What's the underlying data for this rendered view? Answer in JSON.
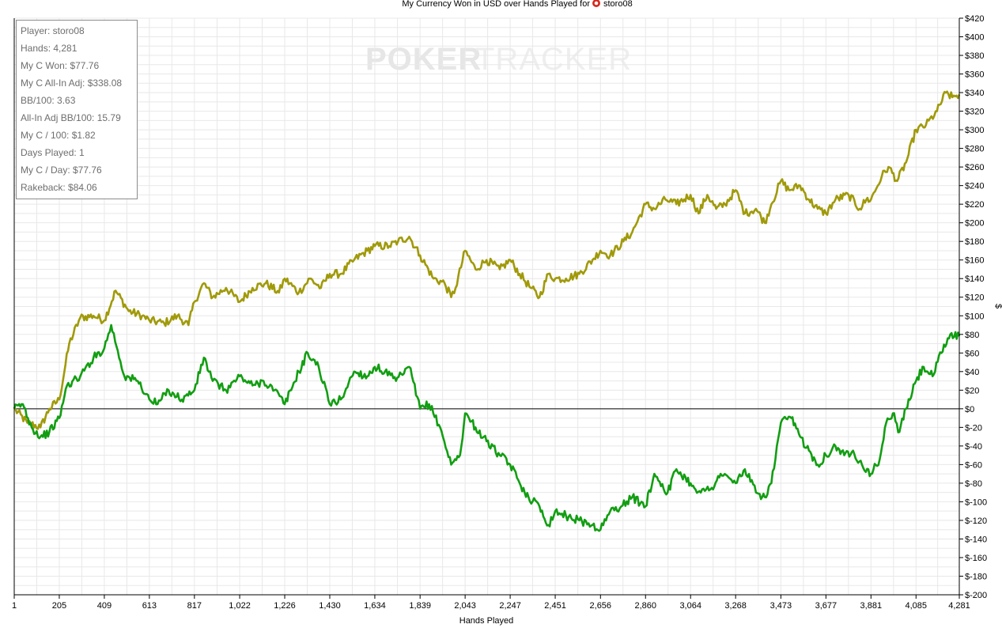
{
  "chart_data": {
    "type": "line",
    "title": "My Currency Won in USD over Hands Played for",
    "player": "storo08",
    "xlabel": "Hands Played",
    "ylabel": "$",
    "xlim": [
      1,
      4281
    ],
    "ylim": [
      -200,
      420
    ],
    "x_ticks": [
      1,
      205,
      409,
      613,
      817,
      1022,
      1226,
      1430,
      1634,
      1839,
      2043,
      2247,
      2451,
      2656,
      2860,
      3064,
      3268,
      3473,
      3677,
      3881,
      4085,
      4281
    ],
    "x_tick_labels": [
      "1",
      "205",
      "409",
      "613",
      "817",
      "1,022",
      "1,226",
      "1,430",
      "1,634",
      "1,839",
      "2,043",
      "2,247",
      "2,451",
      "2,656",
      "2,860",
      "3,064",
      "3,268",
      "3,473",
      "3,677",
      "3,881",
      "4,085",
      "4,281"
    ],
    "y_ticks": [
      420,
      400,
      380,
      360,
      340,
      320,
      300,
      280,
      260,
      240,
      220,
      200,
      180,
      160,
      140,
      120,
      100,
      80,
      60,
      40,
      20,
      0,
      -20,
      -40,
      -60,
      -80,
      -100,
      -120,
      -140,
      -160,
      -180,
      -200
    ],
    "y_tick_labels": [
      "$420",
      "$400",
      "$380",
      "$360",
      "$340",
      "$320",
      "$300",
      "$280",
      "$260",
      "$240",
      "$220",
      "$200",
      "$180",
      "$160",
      "$140",
      "$120",
      "$100",
      "$80",
      "$60",
      "$40",
      "$20",
      "$0",
      "$-20",
      "$-40",
      "$-60",
      "$-80",
      "$-100",
      "$-120",
      "$-140",
      "$-160",
      "$-180",
      "$-200"
    ],
    "grid": true,
    "series": [
      {
        "color": "#a09a0a",
        "x": [
          1,
          60,
          120,
          160,
          205,
          250,
          300,
          360,
          409,
          460,
          520,
          580,
          613,
          680,
          740,
          790,
          817,
          860,
          900,
          960,
          1022,
          1080,
          1140,
          1200,
          1226,
          1290,
          1340,
          1390,
          1430,
          1480,
          1540,
          1600,
          1634,
          1700,
          1739,
          1790,
          1839,
          1900,
          1950,
          1980,
          2000,
          2043,
          2090,
          2140,
          2200,
          2247,
          2290,
          2340,
          2380,
          2420,
          2451,
          2500,
          2560,
          2620,
          2656,
          2700,
          2760,
          2800,
          2860,
          2900,
          2950,
          3000,
          3064,
          3100,
          3140,
          3180,
          3220,
          3268,
          3310,
          3360,
          3400,
          3430,
          3473,
          3510,
          3560,
          3600,
          3640,
          3677,
          3720,
          3780,
          3830,
          3860,
          3881,
          3930,
          3960,
          4000,
          4040,
          4085,
          4130,
          4180,
          4220,
          4250,
          4281
        ],
        "y": [
          0,
          -15,
          -20,
          0,
          10,
          70,
          98,
          100,
          95,
          127,
          105,
          100,
          95,
          92,
          100,
          90,
          115,
          135,
          120,
          130,
          115,
          130,
          135,
          125,
          140,
          125,
          140,
          130,
          145,
          145,
          160,
          170,
          175,
          175,
          180,
          185,
          165,
          140,
          135,
          120,
          130,
          170,
          150,
          160,
          150,
          160,
          145,
          130,
          120,
          145,
          140,
          140,
          145,
          160,
          170,
          165,
          180,
          190,
          220,
          215,
          225,
          220,
          230,
          210,
          230,
          215,
          220,
          235,
          210,
          215,
          200,
          220,
          245,
          235,
          240,
          225,
          215,
          210,
          225,
          230,
          215,
          225,
          225,
          250,
          260,
          245,
          265,
          300,
          305,
          320,
          340,
          335,
          338
        ]
      },
      {
        "color": "#129e12",
        "x": [
          1,
          40,
          80,
          120,
          160,
          205,
          240,
          300,
          360,
          409,
          440,
          500,
          560,
          613,
          650,
          700,
          760,
          817,
          860,
          900,
          960,
          1022,
          1080,
          1130,
          1180,
          1226,
          1290,
          1330,
          1380,
          1430,
          1480,
          1540,
          1600,
          1634,
          1680,
          1730,
          1790,
          1839,
          1880,
          1930,
          1980,
          2020,
          2043,
          2090,
          2140,
          2200,
          2247,
          2290,
          2330,
          2380,
          2420,
          2451,
          2500,
          2560,
          2620,
          2656,
          2700,
          2750,
          2800,
          2860,
          2900,
          2960,
          3000,
          3064,
          3110,
          3160,
          3200,
          3268,
          3310,
          3360,
          3400,
          3430,
          3473,
          3520,
          3560,
          3600,
          3640,
          3677,
          3720,
          3760,
          3800,
          3840,
          3881,
          3920,
          3950,
          3980,
          4010,
          4040,
          4085,
          4120,
          4160,
          4200,
          4240,
          4281
        ],
        "y": [
          0,
          5,
          -20,
          -30,
          -25,
          -10,
          25,
          35,
          55,
          65,
          90,
          35,
          30,
          10,
          5,
          20,
          10,
          20,
          55,
          30,
          20,
          35,
          25,
          30,
          20,
          5,
          40,
          60,
          45,
          5,
          10,
          40,
          35,
          45,
          40,
          30,
          45,
          0,
          5,
          -20,
          -60,
          -50,
          -5,
          -20,
          -35,
          -50,
          -60,
          -80,
          -95,
          -105,
          -125,
          -110,
          -115,
          -120,
          -125,
          -130,
          -110,
          -105,
          -95,
          -105,
          -70,
          -90,
          -65,
          -80,
          -90,
          -85,
          -70,
          -80,
          -65,
          -90,
          -95,
          -80,
          -15,
          -10,
          -30,
          -45,
          -60,
          -50,
          -40,
          -50,
          -45,
          -60,
          -70,
          -55,
          -15,
          -5,
          -25,
          0,
          30,
          45,
          35,
          60,
          80,
          78
        ]
      }
    ]
  },
  "stats": [
    "Player: storo08",
    "Hands: 4,281",
    "My C Won: $77.76",
    "My C All-In Adj: $338.08",
    "BB/100: 3.63",
    "All-In Adj BB/100: 15.79",
    "My C / 100: $1.82",
    "Days Played: 1",
    "My C / Day: $77.76",
    "Rakeback: $84.06"
  ],
  "watermark": {
    "part1": "POKER",
    "part2": "TRACKER"
  },
  "colors": {
    "all_in_adj_line": "#a09a0a",
    "won_line": "#129e12",
    "grid": "#e8e8e8",
    "player_icon": "#d42a1e"
  },
  "icons": {
    "player_icon": "poker-chip-icon"
  }
}
